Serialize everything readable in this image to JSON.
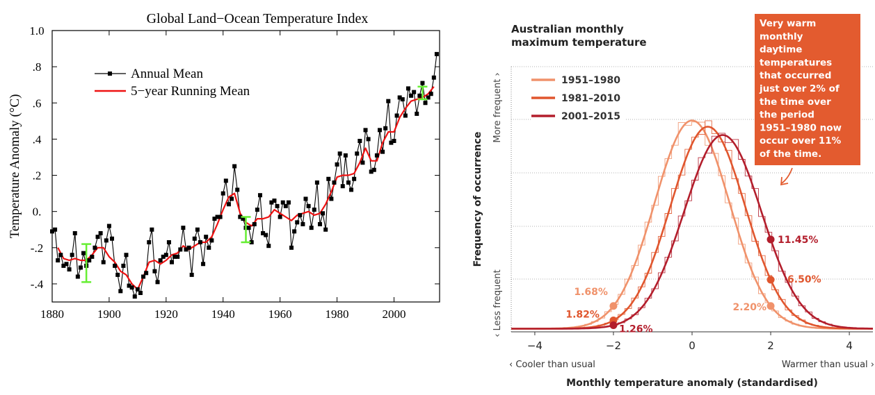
{
  "charts": [
    {
      "type": "line",
      "title": "Global Land−Ocean Temperature Index",
      "xlabel": "",
      "ylabel": "Temperature Anomaly (°C)",
      "xlim": [
        1880,
        2016
      ],
      "ylim": [
        -0.5,
        1.0
      ],
      "x_ticks": [
        1880,
        1900,
        1920,
        1940,
        1960,
        1980,
        2000
      ],
      "x_tick_labels": [
        "1880",
        "1900",
        "1920",
        "1940",
        "1960",
        "1980",
        "2000"
      ],
      "y_ticks": [
        -0.4,
        -0.2,
        0.0,
        0.2,
        0.4,
        0.6,
        0.8,
        1.0
      ],
      "y_tick_labels": [
        "-.4",
        "-.2",
        "0.",
        ".2",
        ".4",
        ".6",
        ".8",
        "1.0"
      ],
      "legend": {
        "position": "top-left",
        "entries": [
          "Annual Mean",
          "5−year Running Mean"
        ]
      },
      "colors": {
        "annual": "#000000",
        "running": "#ee1111",
        "uncertainty": "#66ee33"
      },
      "series": [
        {
          "name": "Annual Mean",
          "x": [
            1880,
            1881,
            1882,
            1883,
            1884,
            1885,
            1886,
            1887,
            1888,
            1889,
            1890,
            1891,
            1892,
            1893,
            1894,
            1895,
            1896,
            1897,
            1898,
            1899,
            1900,
            1901,
            1902,
            1903,
            1904,
            1905,
            1906,
            1907,
            1908,
            1909,
            1910,
            1911,
            1912,
            1913,
            1914,
            1915,
            1916,
            1917,
            1918,
            1919,
            1920,
            1921,
            1922,
            1923,
            1924,
            1925,
            1926,
            1927,
            1928,
            1929,
            1930,
            1931,
            1932,
            1933,
            1934,
            1935,
            1936,
            1937,
            1938,
            1939,
            1940,
            1941,
            1942,
            1943,
            1944,
            1945,
            1946,
            1947,
            1948,
            1949,
            1950,
            1951,
            1952,
            1953,
            1954,
            1955,
            1956,
            1957,
            1958,
            1959,
            1960,
            1961,
            1962,
            1963,
            1964,
            1965,
            1966,
            1967,
            1968,
            1969,
            1970,
            1971,
            1972,
            1973,
            1974,
            1975,
            1976,
            1977,
            1978,
            1979,
            1980,
            1981,
            1982,
            1983,
            1984,
            1985,
            1986,
            1987,
            1988,
            1989,
            1990,
            1991,
            1992,
            1993,
            1994,
            1995,
            1996,
            1997,
            1998,
            1999,
            2000,
            2001,
            2002,
            2003,
            2004,
            2005,
            2006,
            2007,
            2008,
            2009,
            2010,
            2011,
            2012,
            2013,
            2014,
            2015
          ],
          "values": [
            -0.11,
            -0.1,
            -0.27,
            -0.24,
            -0.3,
            -0.29,
            -0.32,
            -0.24,
            -0.12,
            -0.36,
            -0.31,
            -0.23,
            -0.3,
            -0.27,
            -0.25,
            -0.2,
            -0.14,
            -0.12,
            -0.28,
            -0.16,
            -0.08,
            -0.15,
            -0.3,
            -0.35,
            -0.44,
            -0.3,
            -0.24,
            -0.41,
            -0.42,
            -0.47,
            -0.43,
            -0.45,
            -0.36,
            -0.34,
            -0.17,
            -0.1,
            -0.33,
            -0.39,
            -0.27,
            -0.25,
            -0.24,
            -0.17,
            -0.28,
            -0.25,
            -0.25,
            -0.21,
            -0.09,
            -0.21,
            -0.2,
            -0.35,
            -0.15,
            -0.1,
            -0.17,
            -0.29,
            -0.14,
            -0.2,
            -0.16,
            -0.04,
            -0.03,
            -0.03,
            0.1,
            0.17,
            0.04,
            0.07,
            0.25,
            0.12,
            -0.03,
            -0.04,
            -0.09,
            -0.09,
            -0.17,
            -0.07,
            0.01,
            0.09,
            -0.12,
            -0.13,
            -0.19,
            0.05,
            0.06,
            0.03,
            -0.03,
            0.05,
            0.03,
            0.05,
            -0.2,
            -0.11,
            -0.06,
            -0.02,
            -0.07,
            0.07,
            0.03,
            -0.09,
            0.01,
            0.16,
            -0.07,
            -0.01,
            -0.1,
            0.18,
            0.07,
            0.16,
            0.26,
            0.32,
            0.14,
            0.31,
            0.16,
            0.12,
            0.18,
            0.32,
            0.39,
            0.27,
            0.45,
            0.4,
            0.22,
            0.23,
            0.31,
            0.45,
            0.33,
            0.46,
            0.61,
            0.38,
            0.39,
            0.53,
            0.63,
            0.62,
            0.53,
            0.68,
            0.64,
            0.66,
            0.54,
            0.64,
            0.71,
            0.6,
            0.63,
            0.65,
            0.74,
            0.87
          ]
        },
        {
          "name": "5−year Running Mean",
          "x": [
            1882,
            1884,
            1886,
            1888,
            1890,
            1892,
            1894,
            1896,
            1898,
            1900,
            1902,
            1904,
            1906,
            1908,
            1910,
            1912,
            1914,
            1916,
            1918,
            1920,
            1922,
            1924,
            1926,
            1928,
            1930,
            1932,
            1934,
            1936,
            1938,
            1940,
            1942,
            1944,
            1946,
            1948,
            1950,
            1952,
            1954,
            1956,
            1958,
            1960,
            1962,
            1964,
            1966,
            1968,
            1970,
            1972,
            1974,
            1976,
            1978,
            1980,
            1982,
            1984,
            1986,
            1988,
            1990,
            1992,
            1994,
            1996,
            1998,
            2000,
            2002,
            2004,
            2006,
            2008,
            2010,
            2012,
            2014
          ],
          "values": [
            -0.2,
            -0.26,
            -0.27,
            -0.26,
            -0.27,
            -0.27,
            -0.24,
            -0.2,
            -0.2,
            -0.25,
            -0.28,
            -0.33,
            -0.35,
            -0.4,
            -0.43,
            -0.36,
            -0.28,
            -0.27,
            -0.29,
            -0.27,
            -0.24,
            -0.23,
            -0.19,
            -0.21,
            -0.19,
            -0.17,
            -0.17,
            -0.14,
            -0.07,
            0.01,
            0.08,
            0.1,
            -0.01,
            -0.06,
            -0.08,
            -0.04,
            -0.04,
            -0.03,
            0.01,
            -0.01,
            -0.03,
            -0.05,
            -0.02,
            -0.01,
            0.0,
            -0.02,
            -0.01,
            0.04,
            0.11,
            0.19,
            0.2,
            0.2,
            0.21,
            0.27,
            0.35,
            0.28,
            0.28,
            0.38,
            0.44,
            0.44,
            0.52,
            0.57,
            0.61,
            0.62,
            0.63,
            0.65,
            0.69
          ]
        }
      ],
      "uncertainty_bars": [
        {
          "x": 1892,
          "low": -0.39,
          "high": -0.18
        },
        {
          "x": 1948,
          "low": -0.17,
          "high": -0.03
        },
        {
          "x": 2010,
          "low": 0.62,
          "high": 0.69
        }
      ]
    },
    {
      "type": "line",
      "title": "Australian monthly\nmaximum temperature",
      "xlabel": "Monthly temperature anomaly (standardised)",
      "ylabel": "Frequency of occurrence",
      "x_ticks": [
        -4,
        -2,
        0,
        2,
        4
      ],
      "x_tick_labels": [
        "−4",
        "−2",
        "0",
        "2",
        "4"
      ],
      "xlim": [
        -4.6,
        4.6
      ],
      "axis_end_labels": {
        "left": "‹ Cooler than usual",
        "right": "Warmer than usual ›"
      },
      "y_side_labels": {
        "top": "More frequent ›",
        "bottom": "‹ Less frequent"
      },
      "legend": {
        "position": "top-left",
        "entries": [
          "1951–1980",
          "1981–2010",
          "2001–2015"
        ]
      },
      "annotation": "Very warm\nmonthly\ndaytime\ntemperatures\nthat occurred\njust over 2% of\nthe time over\nthe period\n1951–1980 now\noccur over 11%\nof the time.",
      "colors": {
        "s1951": "#f0926b",
        "s1981": "#e0562e",
        "s2001": "#b31e2c",
        "annotation_bg": "#e35b2f",
        "grid": "#999999"
      },
      "series": [
        {
          "name": "1951–1980",
          "mean": 0.0,
          "sd": 0.95,
          "peak": 1.0,
          "points": [
            {
              "x": -2,
              "label": "1.68%"
            },
            {
              "x": 2,
              "label": "2.20%"
            }
          ]
        },
        {
          "name": "1981–2010",
          "mean": 0.4,
          "sd": 0.95,
          "peak": 0.97,
          "points": [
            {
              "x": -2,
              "label": "1.82%"
            },
            {
              "x": 2,
              "label": "6.50%"
            }
          ]
        },
        {
          "name": "2001–2015",
          "mean": 0.78,
          "sd": 0.98,
          "peak": 0.93,
          "points": [
            {
              "x": -2,
              "label": "1.26%"
            },
            {
              "x": 2,
              "label": "11.45%"
            }
          ]
        }
      ]
    }
  ]
}
